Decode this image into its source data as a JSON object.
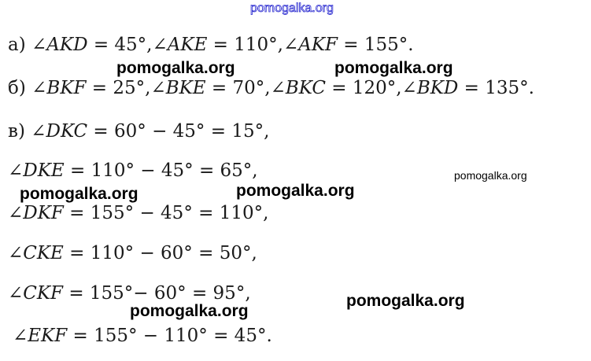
{
  "lines": [
    [
      {
        "t": "а) "
      },
      {
        "t": "∠AKD",
        "i": 1
      },
      {
        "t": " = 45°,"
      },
      {
        "t": "∠AKE",
        "i": 1
      },
      {
        "t": " = 110°,"
      },
      {
        "t": "∠AKF",
        "i": 1
      },
      {
        "t": " = 155°."
      }
    ],
    [
      {
        "t": "б) "
      },
      {
        "t": "∠BKF",
        "i": 1
      },
      {
        "t": " = 25°,"
      },
      {
        "t": "∠BKE",
        "i": 1
      },
      {
        "t": " = 70°,"
      },
      {
        "t": "∠BKC",
        "i": 1
      },
      {
        "t": " = 120°,"
      },
      {
        "t": "∠BKD",
        "i": 1
      },
      {
        "t": " = 135°."
      }
    ],
    [
      {
        "t": "в) "
      },
      {
        "t": "∠DKC",
        "i": 1
      },
      {
        "t": " = 60° − 45° = 15°,"
      }
    ],
    [
      {
        "t": "∠DKE",
        "i": 1
      },
      {
        "t": " = 110° − 45° = 65°,"
      }
    ],
    [
      {
        "t": "∠DKF",
        "i": 1
      },
      {
        "t": " = 155° − 45° = 110°,"
      }
    ],
    [
      {
        "t": "∠CKE",
        "i": 1
      },
      {
        "t": " = 110° − 60° = 50°,"
      }
    ],
    [
      {
        "t": "∠CKF",
        "i": 1
      },
      {
        "t": " = 155°− 60° = 95°,"
      }
    ],
    [
      {
        "t": "∠EKF",
        "i": 1
      },
      {
        "t": " = 155° − 110° = 45°."
      }
    ]
  ],
  "watermarks": {
    "text": "pomogalka.org",
    "color_top": "#2a2ad0"
  }
}
